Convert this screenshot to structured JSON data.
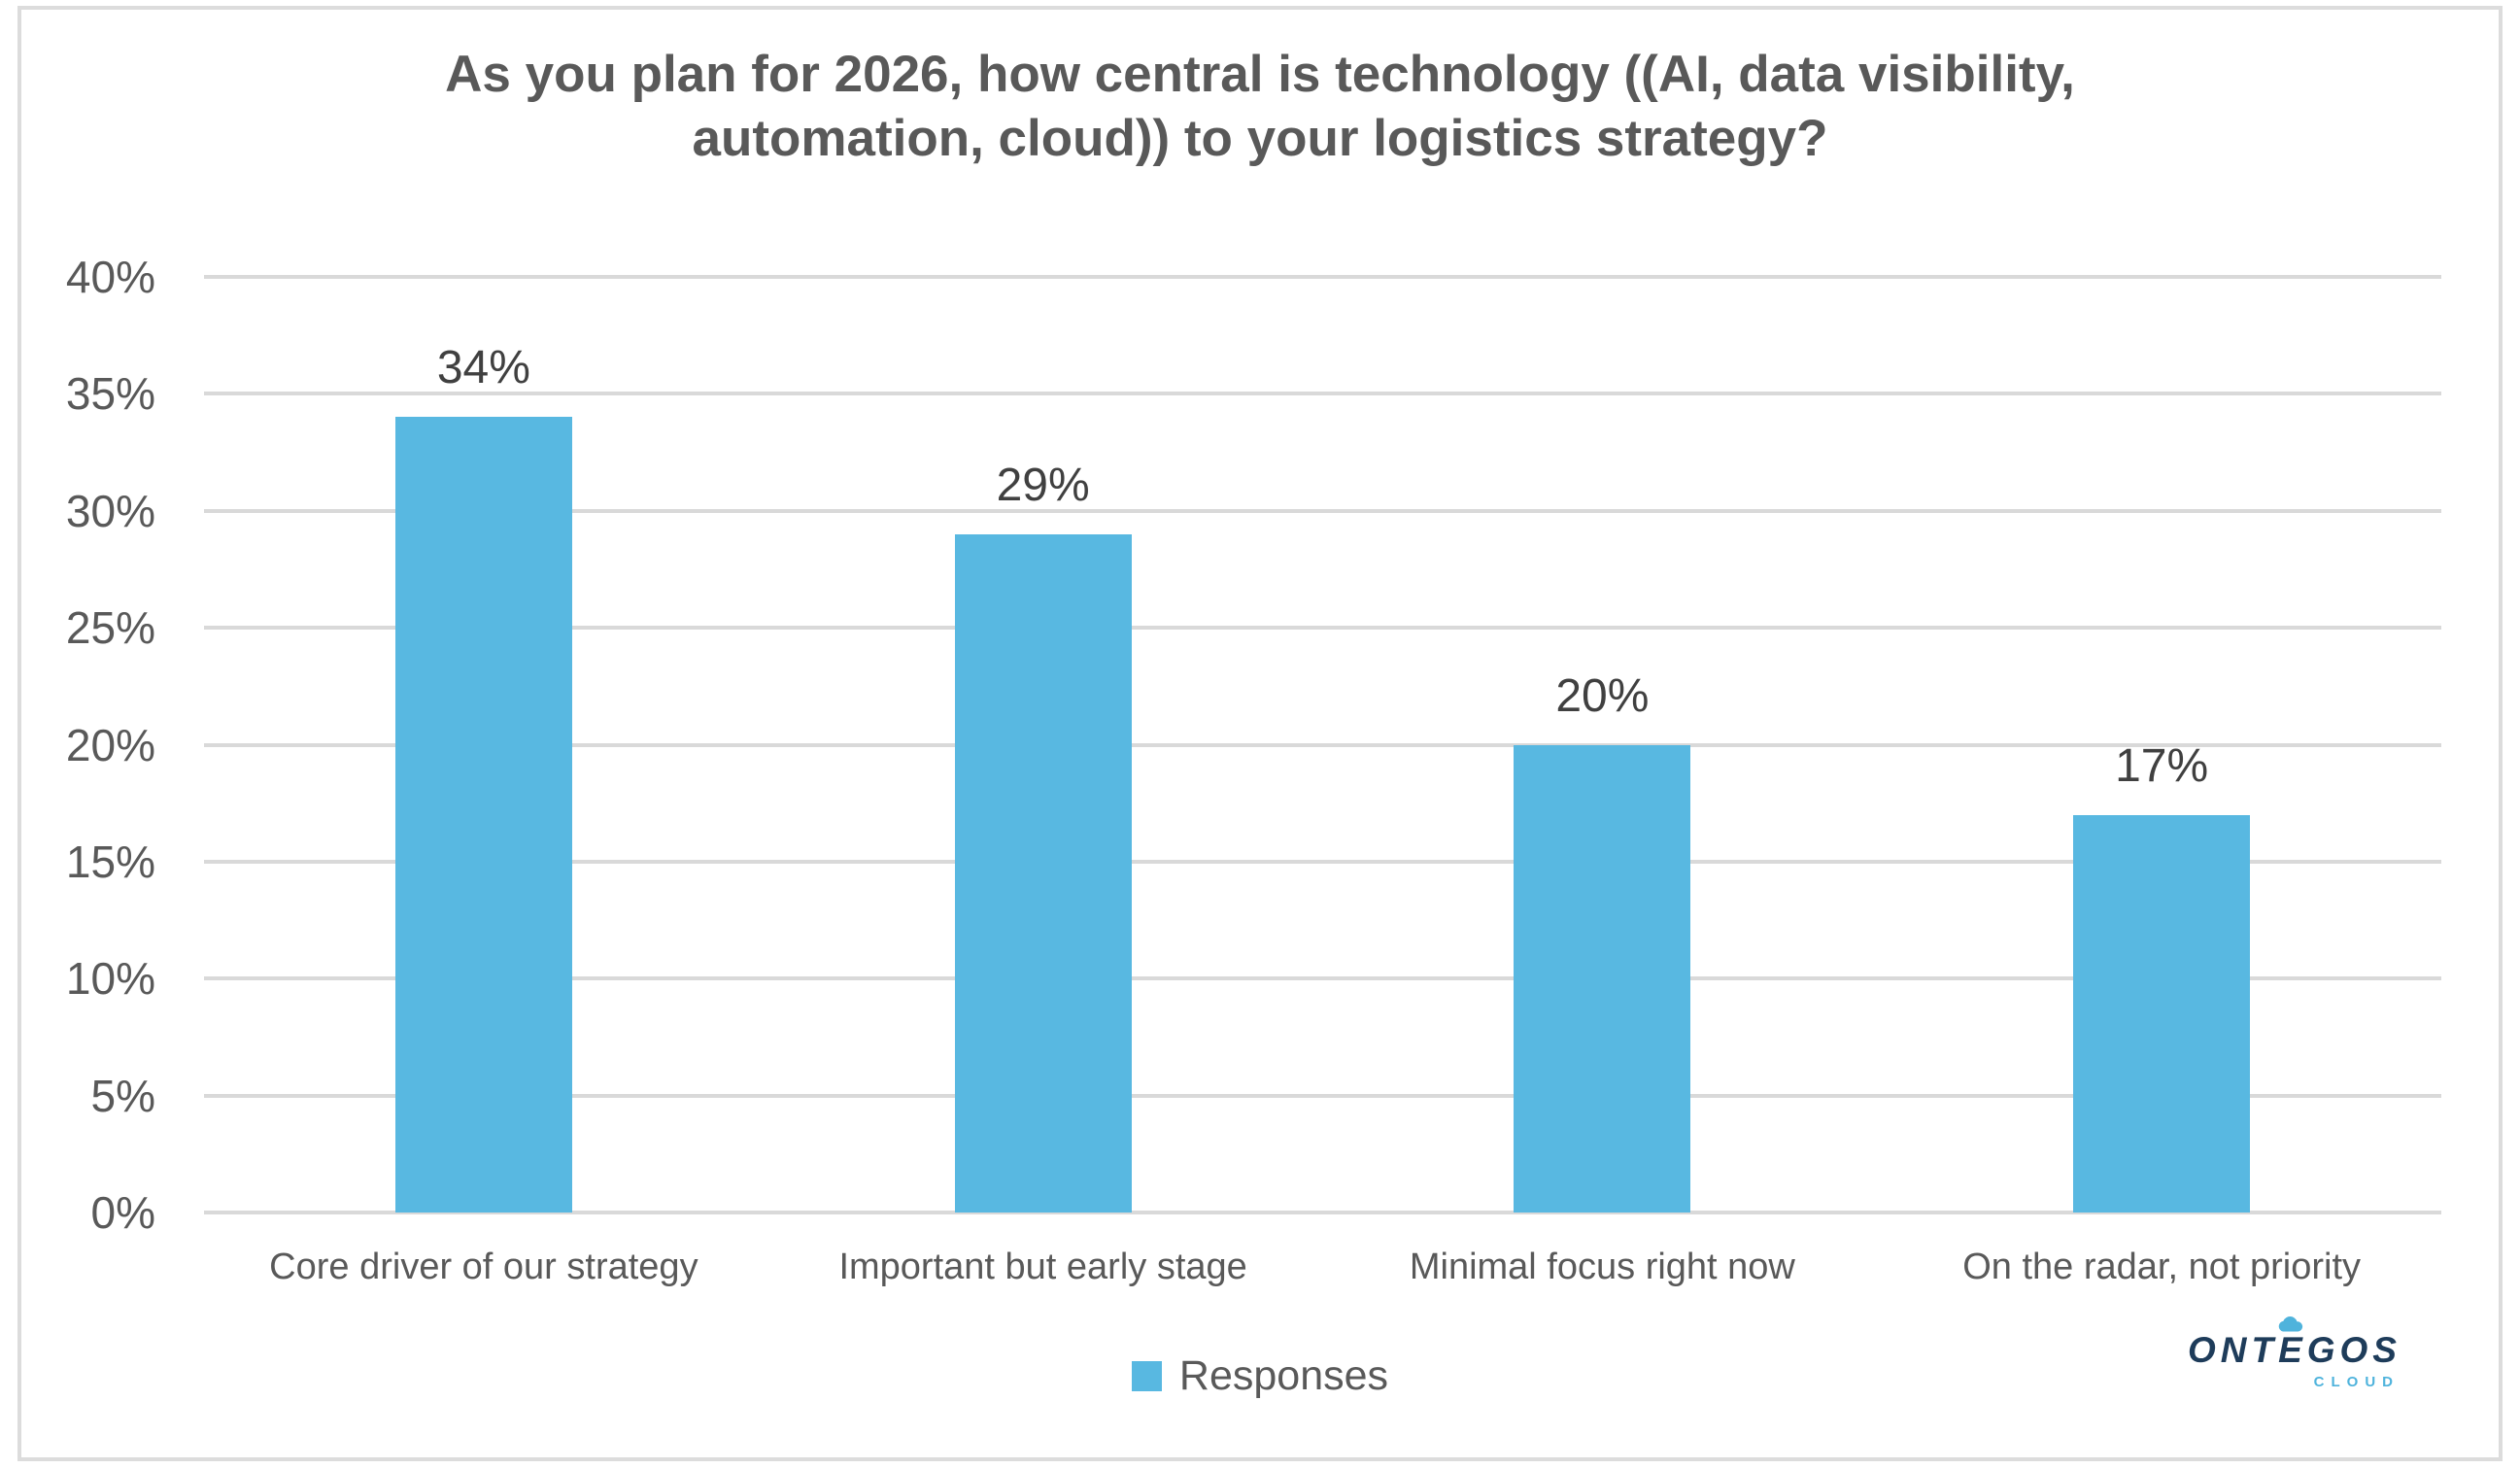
{
  "chart_data": {
    "type": "bar",
    "title": "As you plan for 2026, how central is technology ((AI, data visibility, automation, cloud)) to your logistics strategy?",
    "title_lines": [
      "As you plan for 2026, how central is technology ((AI, data visibility,",
      "automation, cloud)) to your logistics strategy?"
    ],
    "categories": [
      "Core driver of our strategy",
      "Important but early stage",
      "Minimal focus right now",
      "On the radar, not priority"
    ],
    "values": [
      34,
      29,
      20,
      17
    ],
    "data_labels": [
      "34%",
      "29%",
      "20%",
      "17%"
    ],
    "series": [
      {
        "name": "Responses",
        "values": [
          34,
          29,
          20,
          17
        ]
      }
    ],
    "unit": "%",
    "xlabel": "",
    "ylabel": "",
    "ylim": [
      0,
      40
    ],
    "ytick_step": 5,
    "ytick_labels": [
      "0%",
      "5%",
      "10%",
      "15%",
      "20%",
      "25%",
      "30%",
      "35%",
      "40%"
    ],
    "grid": true,
    "legend_position": "bottom",
    "bar_color": "#58B8E1"
  },
  "legend": {
    "label": "Responses",
    "swatch_color": "#58B8E1"
  },
  "branding": {
    "logo_prefix": "ONT",
    "logo_accent_letter": "E",
    "logo_suffix": "GOS",
    "logo_subtitle": "CLOUD",
    "logo_color": "#1E3C5A",
    "logo_accent_color": "#4FB3DC"
  },
  "colors": {
    "title": "#595959",
    "axis_labels": "#595959",
    "data_labels": "#404040",
    "gridline": "#D9D9D9",
    "frame_border": "#DCDCDC",
    "background": "#FFFFFF"
  }
}
